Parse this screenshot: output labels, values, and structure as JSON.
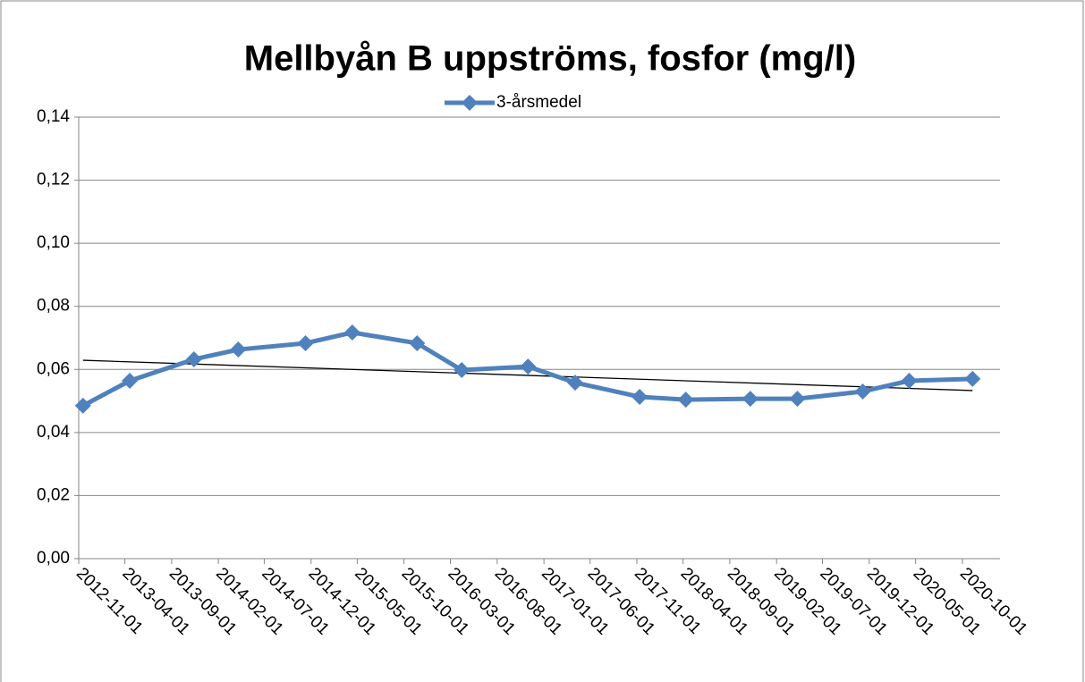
{
  "chart_data": {
    "type": "line",
    "title": "Mellbyån B uppströms, fosfor (mg/l)",
    "x": [
      "2012-11-15",
      "2013-04-17",
      "2013-11-13",
      "2014-04-07",
      "2014-11-13",
      "2015-04-15",
      "2015-11-13",
      "2016-04-07",
      "2016-11-10",
      "2017-04-13",
      "2017-11-10",
      "2018-04-10",
      "2018-11-07",
      "2019-04-10",
      "2019-11-10",
      "2020-04-10",
      "2020-11-03"
    ],
    "series": [
      {
        "name": "3-årsmedel",
        "color": "#4f81bd",
        "values": [
          0.0485,
          0.0564,
          0.0632,
          0.0663,
          0.0683,
          0.0717,
          0.0683,
          0.0598,
          0.0609,
          0.0558,
          0.0513,
          0.0504,
          0.0507,
          0.0507,
          0.053,
          0.0564,
          0.057
        ]
      }
    ],
    "trendline": {
      "color": "#000000",
      "values": [
        0.0629,
        0.0533
      ]
    },
    "xlim": [
      "2012-11-01",
      "2021-02-01"
    ],
    "xticks": [
      "2012-11-01",
      "2013-04-01",
      "2013-09-01",
      "2014-02-01",
      "2014-07-01",
      "2014-12-01",
      "2015-05-01",
      "2015-10-01",
      "2016-03-01",
      "2016-08-01",
      "2017-01-01",
      "2017-06-01",
      "2017-11-01",
      "2018-04-01",
      "2018-09-01",
      "2019-02-01",
      "2019-07-01",
      "2019-12-01",
      "2020-05-01",
      "2020-10-01"
    ],
    "ylim": [
      0,
      0.14
    ],
    "yticks": [
      {
        "value": 0,
        "label": "0,00"
      },
      {
        "value": 0.02,
        "label": "0,02"
      },
      {
        "value": 0.04,
        "label": "0,04"
      },
      {
        "value": 0.06,
        "label": "0,06"
      },
      {
        "value": 0.08,
        "label": "0,08"
      },
      {
        "value": 0.1,
        "label": "0,10"
      },
      {
        "value": 0.12,
        "label": "0,12"
      },
      {
        "value": 0.14,
        "label": "0,14"
      }
    ],
    "grid": true,
    "legend": "top"
  }
}
